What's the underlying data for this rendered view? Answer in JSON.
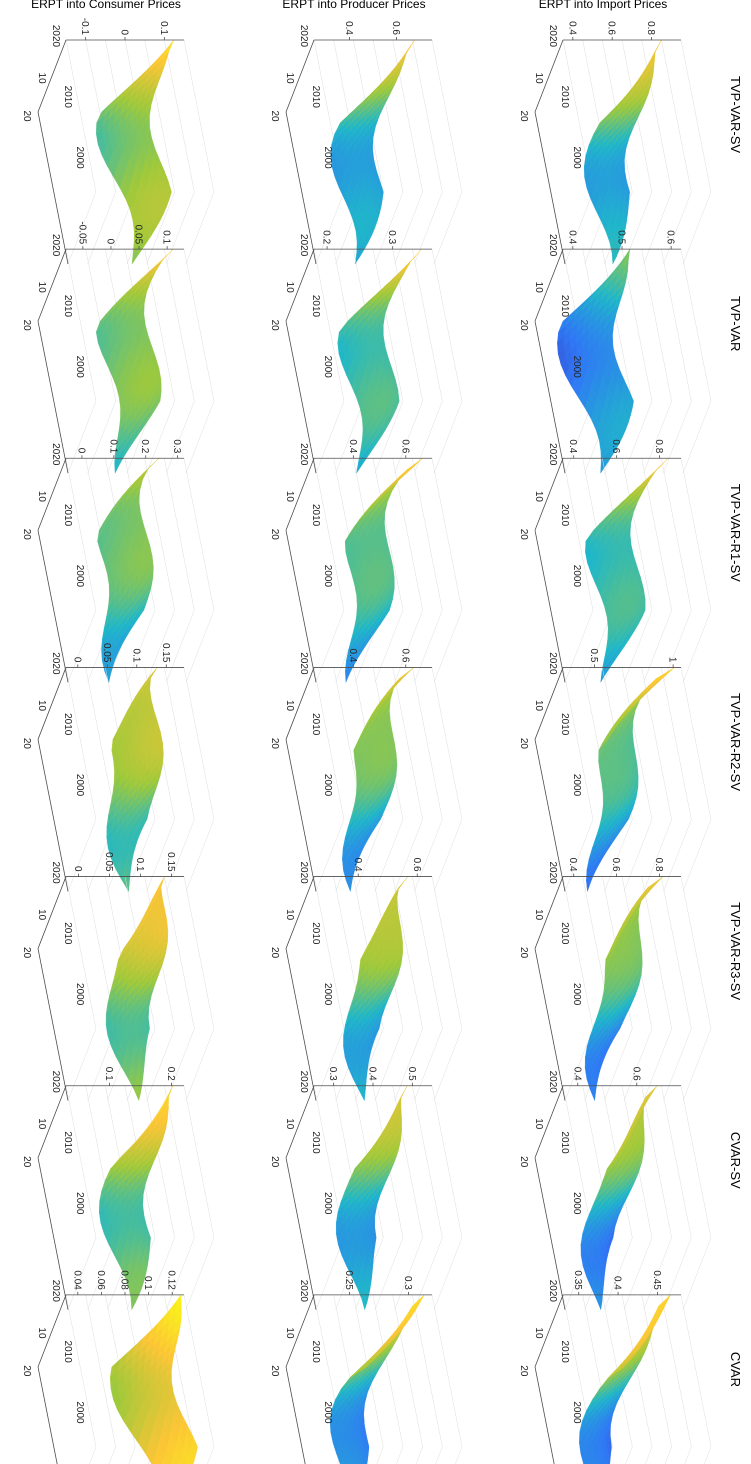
{
  "chart_data": {
    "type": "surface",
    "grid": true,
    "model_titles": [
      "TVP-VAR-SV",
      "TVP-VAR",
      "TVP-VAR-R1-SV",
      "TVP-VAR-R2-SV",
      "TVP-VAR-R3-SV",
      "CVAR-SV",
      "CVAR"
    ],
    "row_labels": [
      "ERPT into Import Prices",
      "ERPT into Producer Prices",
      "ERPT into Consumer Prices"
    ],
    "time_ticks": [
      "2020",
      "2010",
      "2000"
    ],
    "horizon_ticks": [
      "10",
      "20"
    ],
    "time_range": [
      1995,
      2020
    ],
    "horizon_range": [
      1,
      20
    ],
    "colormap": [
      "#3e26a8",
      "#2f77f6",
      "#1fb7c9",
      "#9fc93a",
      "#fcc536",
      "#f9fb15"
    ],
    "panels": [
      {
        "row": 0,
        "col": 0,
        "z_ticks": [
          "0.4",
          "0.6",
          "0.8"
        ],
        "zlim": [
          0.35,
          0.95
        ],
        "base": 0.55,
        "late": 0.85
      },
      {
        "row": 0,
        "col": 1,
        "z_ticks": [
          "0.4",
          "0.5",
          "0.6"
        ],
        "zlim": [
          0.38,
          0.62
        ],
        "base": 0.45,
        "late": 0.5
      },
      {
        "row": 0,
        "col": 2,
        "z_ticks": [
          "0.4",
          "0.6",
          "0.8"
        ],
        "zlim": [
          0.35,
          0.9
        ],
        "base": 0.55,
        "late": 0.8
      },
      {
        "row": 0,
        "col": 3,
        "z_ticks": [
          "0.5",
          "1"
        ],
        "zlim": [
          0.3,
          1.05
        ],
        "base": 0.5,
        "late": 1.0
      },
      {
        "row": 0,
        "col": 4,
        "z_ticks": [
          "0.4",
          "0.6",
          "0.8"
        ],
        "zlim": [
          0.35,
          0.9
        ],
        "base": 0.5,
        "late": 0.85
      },
      {
        "row": 0,
        "col": 5,
        "z_ticks": [
          "0.4",
          "0.6"
        ],
        "zlim": [
          0.35,
          0.75
        ],
        "base": 0.45,
        "late": 0.7
      },
      {
        "row": 0,
        "col": 6,
        "z_ticks": [
          "0.35",
          "0.4",
          "0.45"
        ],
        "zlim": [
          0.33,
          0.48
        ],
        "base": 0.36,
        "late": 0.47
      },
      {
        "row": 1,
        "col": 0,
        "z_ticks": [
          "0.4",
          "0.6"
        ],
        "zlim": [
          0.25,
          0.75
        ],
        "base": 0.4,
        "late": 0.65
      },
      {
        "row": 1,
        "col": 1,
        "z_ticks": [
          "0.2",
          "0.3"
        ],
        "zlim": [
          0.18,
          0.36
        ],
        "base": 0.25,
        "late": 0.33
      },
      {
        "row": 1,
        "col": 2,
        "z_ticks": [
          "0.4",
          "0.6"
        ],
        "zlim": [
          0.25,
          0.7
        ],
        "base": 0.4,
        "late": 0.65
      },
      {
        "row": 1,
        "col": 3,
        "z_ticks": [
          "0.4",
          "0.6"
        ],
        "zlim": [
          0.25,
          0.7
        ],
        "base": 0.4,
        "late": 0.65
      },
      {
        "row": 1,
        "col": 4,
        "z_ticks": [
          "0.4",
          "0.6"
        ],
        "zlim": [
          0.25,
          0.65
        ],
        "base": 0.4,
        "late": 0.6
      },
      {
        "row": 1,
        "col": 5,
        "z_ticks": [
          "0.3",
          "0.4",
          "0.5"
        ],
        "zlim": [
          0.25,
          0.55
        ],
        "base": 0.35,
        "late": 0.5
      },
      {
        "row": 1,
        "col": 6,
        "z_ticks": [
          "0.25",
          "0.3"
        ],
        "zlim": [
          0.22,
          0.32
        ],
        "base": 0.24,
        "late": 0.31
      },
      {
        "row": 2,
        "col": 0,
        "z_ticks": [
          "-0.1",
          "0",
          "0.1"
        ],
        "zlim": [
          -0.15,
          0.15
        ],
        "base": 0.02,
        "late": 0.1
      },
      {
        "row": 2,
        "col": 1,
        "z_ticks": [
          "-0.05",
          "0",
          "0.05",
          "0.1"
        ],
        "zlim": [
          -0.08,
          0.13
        ],
        "base": 0.02,
        "late": 0.1
      },
      {
        "row": 2,
        "col": 2,
        "z_ticks": [
          "0",
          "0.1",
          "0.2",
          "0.3"
        ],
        "zlim": [
          -0.05,
          0.32
        ],
        "base": 0.1,
        "late": 0.25
      },
      {
        "row": 2,
        "col": 3,
        "z_ticks": [
          "0",
          "0.05",
          "0.1",
          "0.15"
        ],
        "zlim": [
          -0.02,
          0.18
        ],
        "base": 0.08,
        "late": 0.15
      },
      {
        "row": 2,
        "col": 4,
        "z_ticks": [
          "0",
          "0.05",
          "0.1",
          "0.15"
        ],
        "zlim": [
          -0.02,
          0.17
        ],
        "base": 0.08,
        "late": 0.15
      },
      {
        "row": 2,
        "col": 5,
        "z_ticks": [
          "0.1",
          "0.2"
        ],
        "zlim": [
          0.03,
          0.22
        ],
        "base": 0.12,
        "late": 0.2
      },
      {
        "row": 2,
        "col": 6,
        "z_ticks": [
          "0.04",
          "0.06",
          "0.08",
          "0.1",
          "0.12"
        ],
        "zlim": [
          0.03,
          0.13
        ],
        "base": 0.11,
        "late": 0.12
      }
    ]
  }
}
